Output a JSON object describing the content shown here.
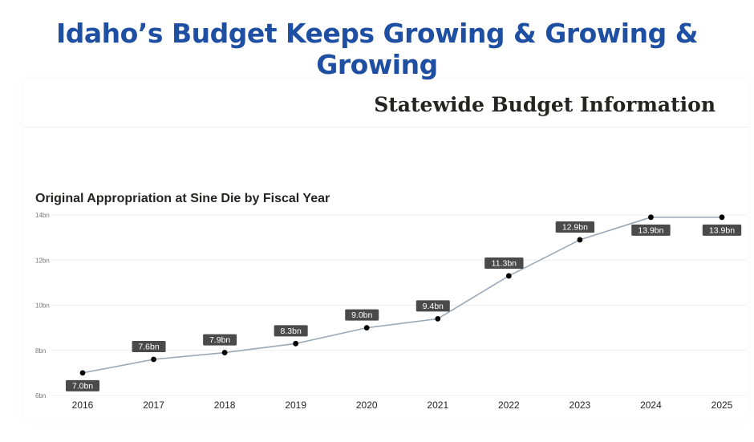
{
  "headline": "Idaho’s Budget Keeps Growing & Growing & Growing",
  "subtitle": "Statewide Budget Information",
  "colors": {
    "headline": "#1f4fa3",
    "line": "#9aa8b6",
    "marker": "#000000",
    "label_bg": "#4a4a4a",
    "label_text": "#ffffff",
    "grid": "#eeeeee",
    "tick_text": "#777777"
  },
  "chart_data": {
    "type": "line",
    "title": "Original Appropriation at Sine Die by Fiscal Year",
    "x": [
      "2016",
      "2017",
      "2018",
      "2019",
      "2020",
      "2021",
      "2022",
      "2023",
      "2024",
      "2025"
    ],
    "values": [
      7.0,
      7.6,
      7.9,
      8.3,
      9.0,
      9.4,
      11.3,
      12.9,
      13.9,
      13.9
    ],
    "data_labels": [
      "7.0bn",
      "7.6bn",
      "7.9bn",
      "8.3bn",
      "9.0bn",
      "9.4bn",
      "11.3bn",
      "12.9bn",
      "13.9bn",
      "13.9bn"
    ],
    "y_ticks": [
      6,
      8,
      10,
      12,
      14
    ],
    "y_tick_labels": [
      "6bn",
      "8bn",
      "10bn",
      "12bn",
      "14bn"
    ],
    "ylim": [
      6,
      14
    ],
    "xlabel": "",
    "ylabel": "",
    "grid": true,
    "legend": "none"
  }
}
